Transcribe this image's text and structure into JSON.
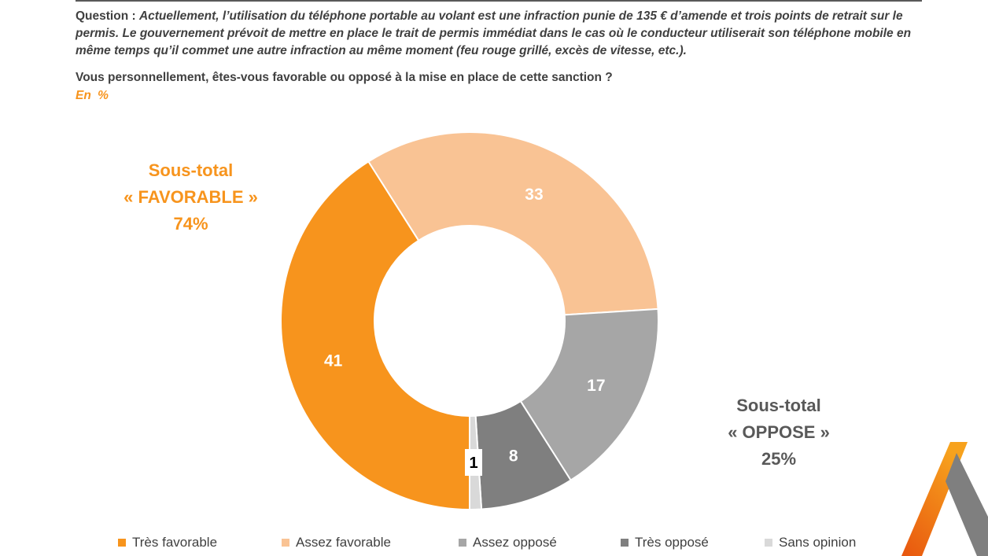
{
  "header": {
    "question_label": "Question :",
    "question_text": "Actuellement, l’utilisation du téléphone portable au volant est une infraction punie de 135 € d’amende et trois points de retrait sur le permis. Le gouvernement prévoit de mettre en place le trait de permis immédiat dans le cas où le conducteur utiliserait son téléphone mobile en même temps qu’il commet une autre infraction au même moment (feu rouge grillé, excès de vitesse, etc.).",
    "sub_question": "Vous personnellement, êtes-vous favorable ou opposé à la mise en place de cette sanction ?",
    "unit": "En %"
  },
  "subtotals": {
    "favorable": {
      "line1": "Sous-total",
      "line2": "« FAVORABLE »",
      "line3": "74%"
    },
    "oppose": {
      "line1": "Sous-total",
      "line2": "« OPPOSE »",
      "line3": "25%"
    }
  },
  "chart_data": {
    "type": "pie",
    "donut": true,
    "title": "",
    "legend_position": "bottom",
    "categories": [
      "Très favorable",
      "Assez favorable",
      "Assez opposé",
      "Très opposé",
      "Sans opinion"
    ],
    "values": [
      41,
      33,
      17,
      8,
      1
    ],
    "colors": [
      "#f7941d",
      "#f9c394",
      "#a6a6a6",
      "#7f7f7f",
      "#d9d9d9"
    ],
    "label_colors": [
      "#ffffff",
      "#ffffff",
      "#ffffff",
      "#ffffff",
      "#000000"
    ]
  },
  "colors": {
    "accent": "#f7941d",
    "text": "#404040",
    "logo_orange": "#e8560f"
  },
  "icons": {
    "logo": "triangle-logo-icon"
  }
}
